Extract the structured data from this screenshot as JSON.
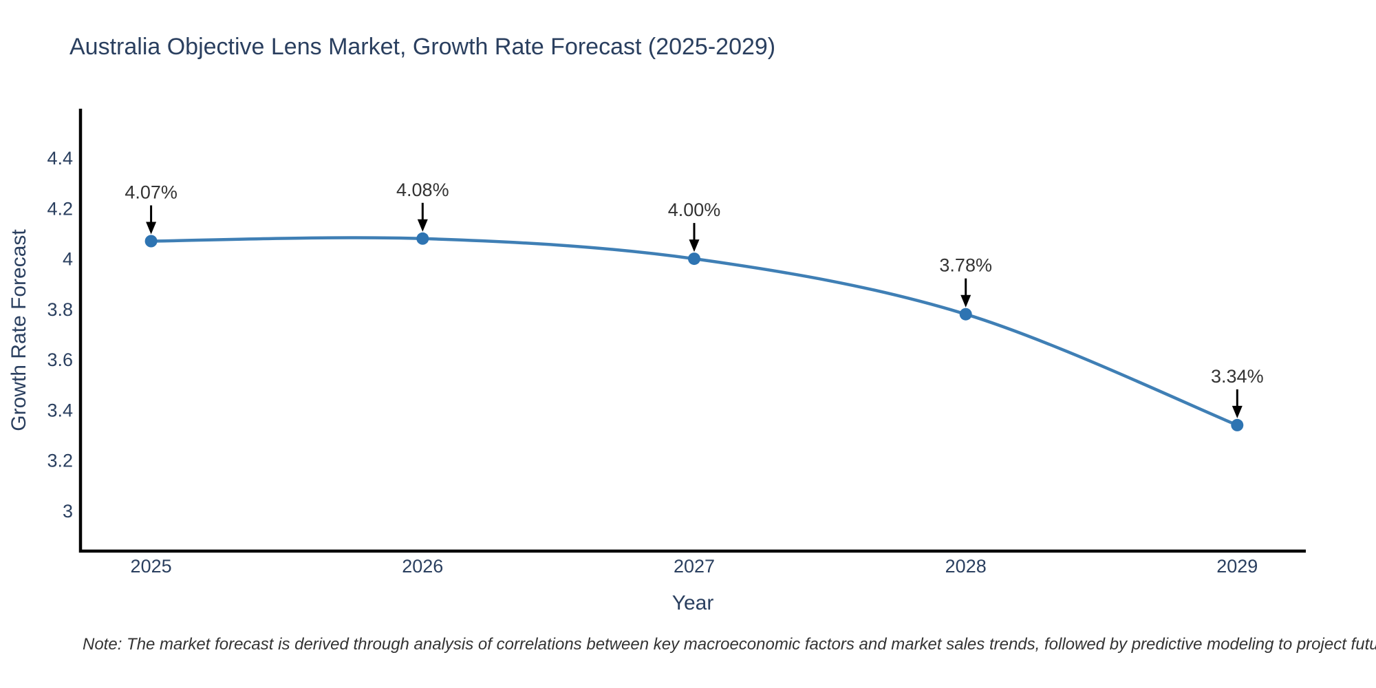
{
  "title": "Australia Objective Lens Market, Growth Rate Forecast (2025-2029)",
  "note": "Note: The market forecast is derived through analysis of correlations between key macroeconomic factors and market sales trends, followed by predictive modeling to project future sales",
  "chart_data": {
    "type": "line",
    "title": "Australia Objective Lens Market, Growth Rate Forecast (2025-2029)",
    "xlabel": "Year",
    "ylabel": "Growth Rate Forecast",
    "x": [
      2025,
      2026,
      2027,
      2028,
      2029
    ],
    "x_tick_labels": [
      "2025",
      "2026",
      "2027",
      "2028",
      "2029"
    ],
    "series": [
      {
        "name": "Growth Rate Forecast",
        "values": [
          4.07,
          4.08,
          4.0,
          3.78,
          3.34
        ]
      }
    ],
    "point_labels": [
      "4.07%",
      "4.08%",
      "4.00%",
      "3.78%",
      "3.34%"
    ],
    "y_tick_labels": [
      "3",
      "3.2",
      "3.4",
      "3.6",
      "3.8",
      "4",
      "4.2",
      "4.4"
    ],
    "y_tick_values": [
      3,
      3.2,
      3.4,
      3.6,
      3.8,
      4,
      4.2,
      4.4
    ],
    "ylim": [
      2.84,
      4.59
    ],
    "xlim": [
      2024.74,
      2029.25
    ],
    "grid": false,
    "legend": "none",
    "smooth": true,
    "annotation_arrows": "down",
    "colors": {
      "line": "#3f7fb5",
      "marker": "#2e74b2",
      "arrow": "#000000",
      "axis_line": "#000000",
      "title_text": "#2a3f5f",
      "tick_text": "#2a3f5f",
      "annotation_text": "#333333",
      "note_text": "#333333",
      "background": "#ffffff"
    }
  }
}
